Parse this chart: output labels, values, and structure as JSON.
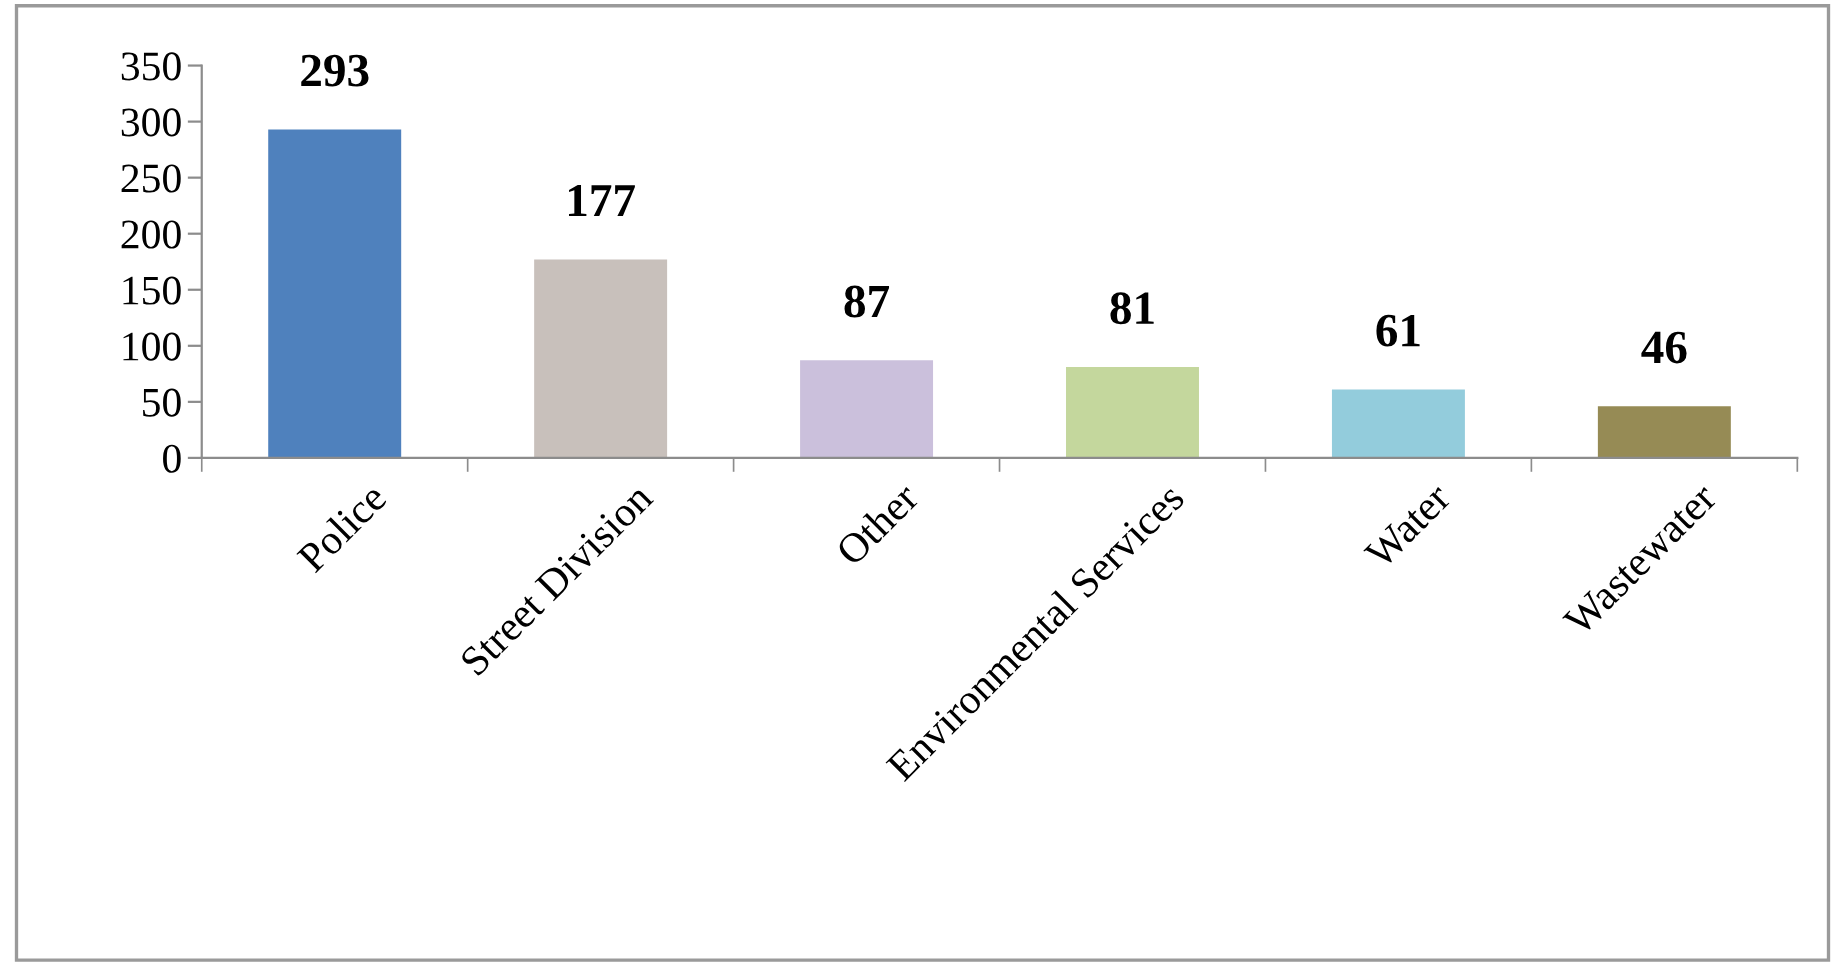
{
  "chart_data": {
    "type": "bar",
    "categories": [
      "Police",
      "Street Division",
      "Other",
      "Environmental Services",
      "Water",
      "Wastewater"
    ],
    "values": [
      293,
      177,
      87,
      81,
      61,
      46
    ],
    "colors": [
      "#4f81bd",
      "#c8c0bb",
      "#cbc0dc",
      "#c4d79d",
      "#93ccdc",
      "#968b55"
    ],
    "ylim": [
      0,
      350
    ],
    "yticks": [
      0,
      50,
      100,
      150,
      200,
      250,
      300,
      350
    ],
    "data_labels": true,
    "grid": false,
    "legend": false
  }
}
